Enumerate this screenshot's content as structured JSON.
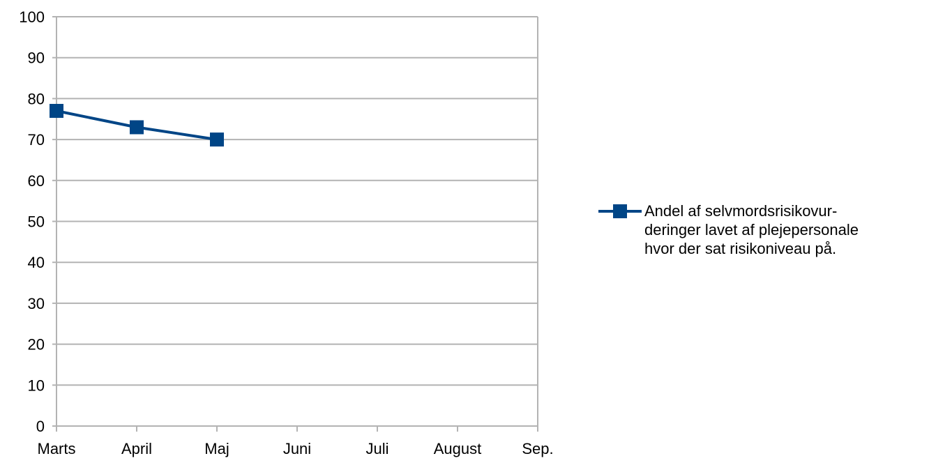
{
  "chart_data": {
    "type": "line",
    "title": "",
    "xlabel": "",
    "ylabel": "",
    "categories": [
      "Marts",
      "April",
      "Maj",
      "Juni",
      "Juli",
      "August",
      "Sep."
    ],
    "series": [
      {
        "name": "Andel af selvmordsrisikovur-\nderinger lavet af plejepersonale\nhvor der sat risikoniveau på.",
        "values": [
          77,
          73,
          70,
          null,
          null,
          null,
          null
        ]
      }
    ],
    "ylim": [
      0,
      100
    ],
    "yticks": [
      "0",
      "10",
      "20",
      "30",
      "40",
      "50",
      "60",
      "70",
      "80",
      "90",
      "100"
    ],
    "grid": true,
    "legend_position": "right",
    "colors": {
      "series": "#004586",
      "grid": "#b3b3b3",
      "axis": "#b3b3b3"
    }
  }
}
